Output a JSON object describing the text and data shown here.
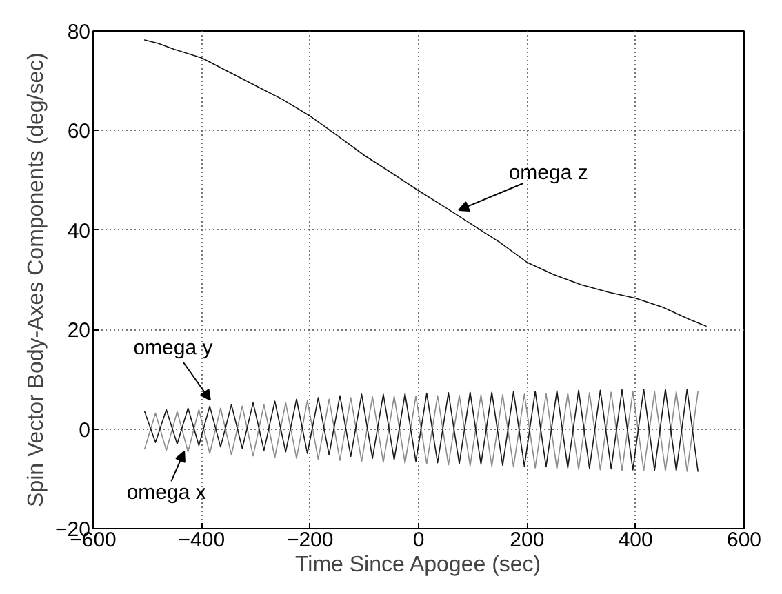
{
  "chart_data": {
    "type": "line",
    "xlabel": "Time Since Apogee (sec)",
    "ylabel": "Spin Vector Body-Axes Components (deg/sec)",
    "xlim": [
      -600,
      600
    ],
    "xticks": [
      -600,
      -400,
      -200,
      0,
      200,
      400,
      600
    ],
    "ylim": [
      -20,
      80
    ],
    "yticks": [
      -20,
      0,
      20,
      40,
      60,
      80
    ],
    "grid": true,
    "marker": "none",
    "line_style": "solid",
    "series": [
      {
        "color": "#111111",
        "x": [
          -505,
          -480,
          -450,
          -400,
          -350,
          -300,
          -250,
          -200,
          -150,
          -100,
          -50,
          0,
          50,
          100,
          150,
          200,
          250,
          300,
          350,
          400,
          450,
          500,
          530
        ],
        "values": [
          78.2,
          77.5,
          76.3,
          74.6,
          71.8,
          69,
          66.2,
          62.9,
          59,
          55,
          51.5,
          47.9,
          44.5,
          41,
          37.5,
          33.5,
          31,
          29,
          27.5,
          26.3,
          24.5,
          22,
          20.7
        ]
      },
      {
        "color": "#8c8c8c",
        "x": [
          -505,
          -485,
          -465,
          -445,
          -425,
          -405,
          -385,
          -365,
          -345,
          -325,
          -305,
          -285,
          -265,
          -245,
          -225,
          -205,
          -185,
          -165,
          -145,
          -125,
          -105,
          -85,
          -65,
          -45,
          -25,
          -5,
          15,
          35,
          55,
          75,
          95,
          115,
          135,
          155,
          175,
          195,
          215,
          235,
          255,
          275,
          295,
          315,
          335,
          355,
          375,
          395,
          415,
          435,
          455,
          475,
          495,
          515
        ],
        "values": [
          -4,
          3.2,
          -4.3,
          3.5,
          -4.6,
          3.9,
          -4.9,
          4.2,
          -5.2,
          4.6,
          -5.4,
          4.9,
          -5.7,
          5.3,
          -5.9,
          5.7,
          -6.1,
          6,
          -6.3,
          6.3,
          -6.5,
          6.5,
          -6.7,
          6.6,
          -6.9,
          6.6,
          -7,
          6.7,
          -7.2,
          6.8,
          -7.4,
          6.9,
          -7.5,
          6.9,
          -7.6,
          7,
          -7.8,
          7.1,
          -8,
          7.2,
          -8.1,
          7.3,
          -8.2,
          7.4,
          -8.3,
          7.5,
          -8.4,
          7.5,
          -8.4,
          7.5,
          -8.5,
          7.5
        ]
      },
      {
        "color": "#1a1a1a",
        "x": [
          -505,
          -485,
          -465,
          -445,
          -425,
          -405,
          -385,
          -365,
          -345,
          -325,
          -305,
          -285,
          -265,
          -245,
          -225,
          -205,
          -185,
          -165,
          -145,
          -125,
          -105,
          -85,
          -65,
          -45,
          -25,
          -5,
          15,
          35,
          55,
          75,
          95,
          115,
          135,
          155,
          175,
          195,
          215,
          235,
          255,
          275,
          295,
          315,
          335,
          355,
          375,
          395,
          415,
          435,
          455,
          475,
          495,
          515
        ],
        "values": [
          3.5,
          -2.7,
          3.9,
          -3,
          4.2,
          -3.3,
          4.6,
          -3.6,
          4.9,
          -3.9,
          5.3,
          -4.3,
          5.6,
          -4.6,
          6,
          -4.9,
          6.3,
          -5.2,
          6.7,
          -5.5,
          7,
          -5.9,
          7,
          -6.2,
          7.1,
          -6.5,
          7.2,
          -6.8,
          7.3,
          -7,
          7.4,
          -7.1,
          7.4,
          -7.3,
          7.5,
          -7.5,
          7.6,
          -7.6,
          7.7,
          -7.8,
          7.8,
          -7.9,
          7.8,
          -8,
          7.9,
          -8.2,
          8,
          -8.3,
          8,
          -8.4,
          8,
          -8.5
        ]
      }
    ],
    "annotations": [
      {
        "text": "omega z",
        "x": 74,
        "y": 44
      },
      {
        "text": "omega y",
        "x": -384,
        "y": 5.8
      },
      {
        "text": "omega x",
        "x": -432,
        "y": -4.5
      }
    ]
  }
}
